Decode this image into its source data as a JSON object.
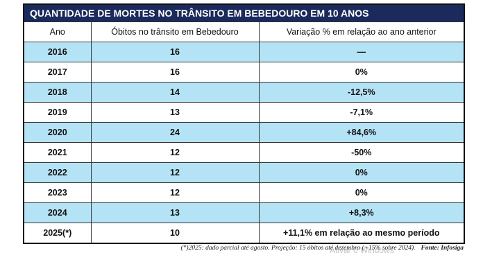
{
  "table": {
    "title": "QUANTIDADE DE MORTES NO TRÂNSITO EM BEBEDOURO EM 10 ANOS",
    "header": [
      "Ano",
      "Óbitos no trânsito em Bebedouro",
      "Variação % em relação ao ano anterior"
    ],
    "rows": [
      [
        "2016",
        "16",
        "—"
      ],
      [
        "2017",
        "16",
        "0%"
      ],
      [
        "2018",
        "14",
        "-12,5%"
      ],
      [
        "2019",
        "13",
        "-7,1%"
      ],
      [
        "2020",
        "24",
        "+84,6%"
      ],
      [
        "2021",
        "12",
        "-50%"
      ],
      [
        "2022",
        "12",
        "0%"
      ],
      [
        "2023",
        "12",
        "0%"
      ],
      [
        "2024",
        "13",
        "+8,3%"
      ],
      [
        "2025(*)",
        "10",
        "+11,1% em relação ao mesmo período"
      ]
    ],
    "footnote": "(*)2025: dado parcial até agosto. Projeção: 15 óbitos até dezembro (+15% sobre 2024).",
    "source": "Fonte: Infosiga"
  },
  "watermark": "Ativar o Windows"
}
